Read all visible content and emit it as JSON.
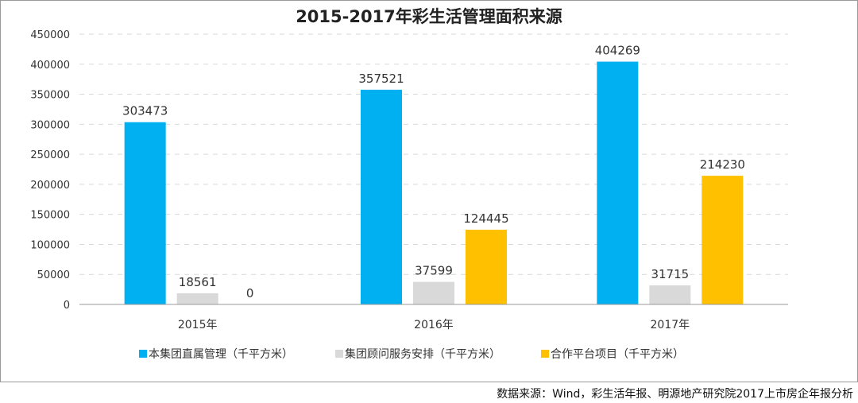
{
  "chart_data": {
    "type": "bar",
    "title": "2015-2017年彩生活管理面积来源",
    "categories": [
      "2015年",
      "2016年",
      "2017年"
    ],
    "series": [
      {
        "name": "本集团直属管理（千平方米）",
        "color": "#00b0f0",
        "values": [
          303473,
          357521,
          404269
        ]
      },
      {
        "name": "集团顾问服务安排（千平方米）",
        "color": "#d9d9d9",
        "values": [
          18561,
          37599,
          31715
        ]
      },
      {
        "name": "合作平台项目（千平方米）",
        "color": "#ffc000",
        "values": [
          0,
          124445,
          214230
        ]
      }
    ],
    "ylim": [
      0,
      450000
    ],
    "yticks": [
      0,
      50000,
      100000,
      150000,
      200000,
      250000,
      300000,
      350000,
      400000,
      450000
    ],
    "grid": true,
    "legend_position": "bottom"
  },
  "footer": {
    "source": "数据来源：Wind，彩生活年报、明源地产研究院2017上市房企年报分析"
  }
}
